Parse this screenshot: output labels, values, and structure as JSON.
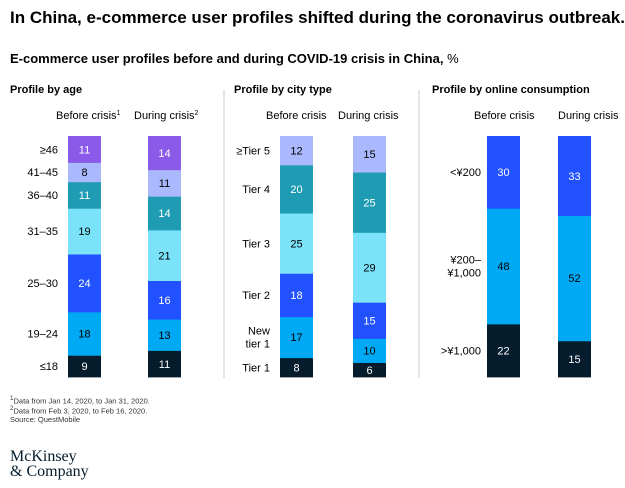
{
  "title": "In China, e-commerce user profiles shifted during the coronavirus outbreak.",
  "subtitle": "E-commerce user profiles before and during COVID-19 crisis in China,",
  "unit": "%",
  "footnotes": [
    "Data from Jan 14, 2020, to Jan 31, 2020.",
    "Data from Feb 3, 2020, to Feb 16, 2020.",
    "Source: QuestMobile"
  ],
  "footnote_marks": [
    "1",
    "2"
  ],
  "logo": {
    "line1": "McKinsey",
    "line2": "& Company"
  },
  "colors": {
    "navy": "#051c2c",
    "sky": "#00a9f4",
    "royal": "#2251ff",
    "cyan": "#7ae2f9",
    "teal": "#1f9cb3",
    "lavender": "#aab9fd",
    "purple": "#8c5ae8"
  },
  "chart_data": [
    {
      "type": "bar",
      "stacked": true,
      "title": "Profile by age",
      "categories": [
        "Before crisis",
        "During crisis"
      ],
      "category_marks": [
        "1",
        "2"
      ],
      "series": [
        {
          "name": "≤18",
          "values": [
            9,
            11
          ],
          "color": "#051c2c"
        },
        {
          "name": "19–24",
          "values": [
            18,
            13
          ],
          "color": "#00a9f4"
        },
        {
          "name": "25–30",
          "values": [
            24,
            16
          ],
          "color": "#2251ff"
        },
        {
          "name": "31–35",
          "values": [
            19,
            21
          ],
          "color": "#7ae2f9"
        },
        {
          "name": "36–40",
          "values": [
            11,
            14
          ],
          "color": "#1f9cb3"
        },
        {
          "name": "41–45",
          "values": [
            8,
            11
          ],
          "color": "#aab9fd"
        },
        {
          "name": "≥46",
          "values": [
            11,
            14
          ],
          "color": "#8c5ae8"
        }
      ]
    },
    {
      "type": "bar",
      "stacked": true,
      "title": "Profile by city type",
      "categories": [
        "Before crisis",
        "During crisis"
      ],
      "series": [
        {
          "name": "Tier 1",
          "values": [
            8,
            6
          ],
          "color": "#051c2c"
        },
        {
          "name": "New tier 1",
          "values": [
            17,
            10
          ],
          "color": "#00a9f4"
        },
        {
          "name": "Tier 2",
          "values": [
            18,
            15
          ],
          "color": "#2251ff"
        },
        {
          "name": "Tier 3",
          "values": [
            25,
            29
          ],
          "color": "#7ae2f9"
        },
        {
          "name": "Tier 4",
          "values": [
            20,
            25
          ],
          "color": "#1f9cb3"
        },
        {
          "name": "≥Tier 5",
          "values": [
            12,
            15
          ],
          "color": "#aab9fd"
        }
      ]
    },
    {
      "type": "bar",
      "stacked": true,
      "title": "Profile by online consumption",
      "categories": [
        "Before crisis",
        "During crisis"
      ],
      "series": [
        {
          "name": ">¥1,000",
          "values": [
            22,
            15
          ],
          "color": "#051c2c"
        },
        {
          "name": "¥200–¥1,000",
          "values": [
            48,
            52
          ],
          "color": "#00a9f4"
        },
        {
          "name": "<¥200",
          "values": [
            30,
            33
          ],
          "color": "#2251ff"
        }
      ]
    }
  ]
}
